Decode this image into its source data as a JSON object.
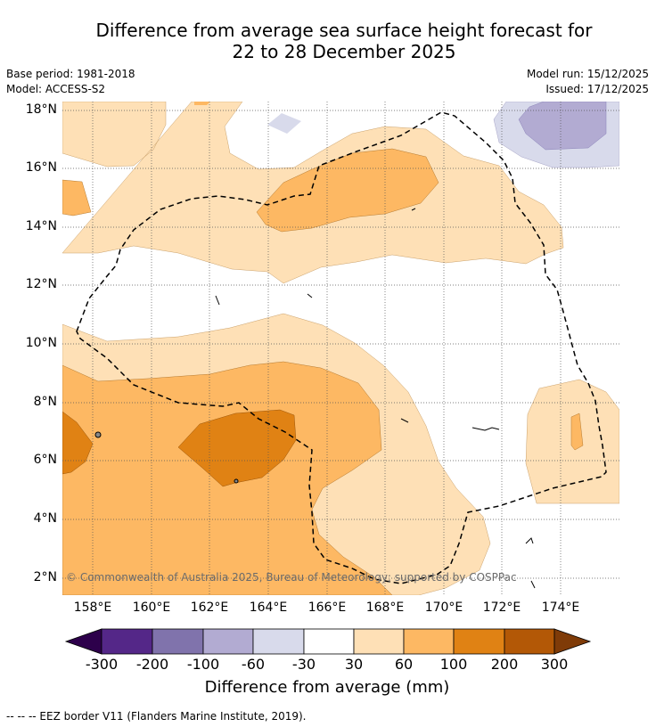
{
  "title": {
    "line1": "Difference from average sea surface height forecast for",
    "line2": "22 to 28 December 2025"
  },
  "meta": {
    "base_period": "Base period: 1981-2018",
    "model": "Model: ACCESS-S2",
    "model_run": "Model run: 15/12/2025",
    "issued": "Issued: 17/12/2025"
  },
  "map": {
    "lat_ticks": [
      "18°N",
      "16°N",
      "14°N",
      "12°N",
      "10°N",
      "8°N",
      "6°N",
      "4°N",
      "2°N"
    ],
    "lon_ticks": [
      "158°E",
      "160°E",
      "162°E",
      "164°E",
      "166°E",
      "168°E",
      "170°E",
      "172°E",
      "174°E"
    ],
    "copyright": "© Commonwealth of Australia 2025, Bureau of Meteorology; supported by COSPPac",
    "eez_border": "dashed black line"
  },
  "colorbar": {
    "title": "Difference from average (mm)",
    "labels": [
      "-300",
      "-200",
      "-100",
      "-60",
      "-30",
      "30",
      "60",
      "100",
      "200",
      "300"
    ],
    "colors": {
      "extend_low": "#2d004b",
      "bins": [
        "#542788",
        "#8073ac",
        "#b2abd2",
        "#d8daeb",
        "#ffffff",
        "#fee0b6",
        "#fdb863",
        "#e08214",
        "#b35806"
      ],
      "extend_high": "#7f3b08"
    }
  },
  "footnote": "--  --  -- EEZ border V11 (Flanders Marine Institute, 2019)."
}
